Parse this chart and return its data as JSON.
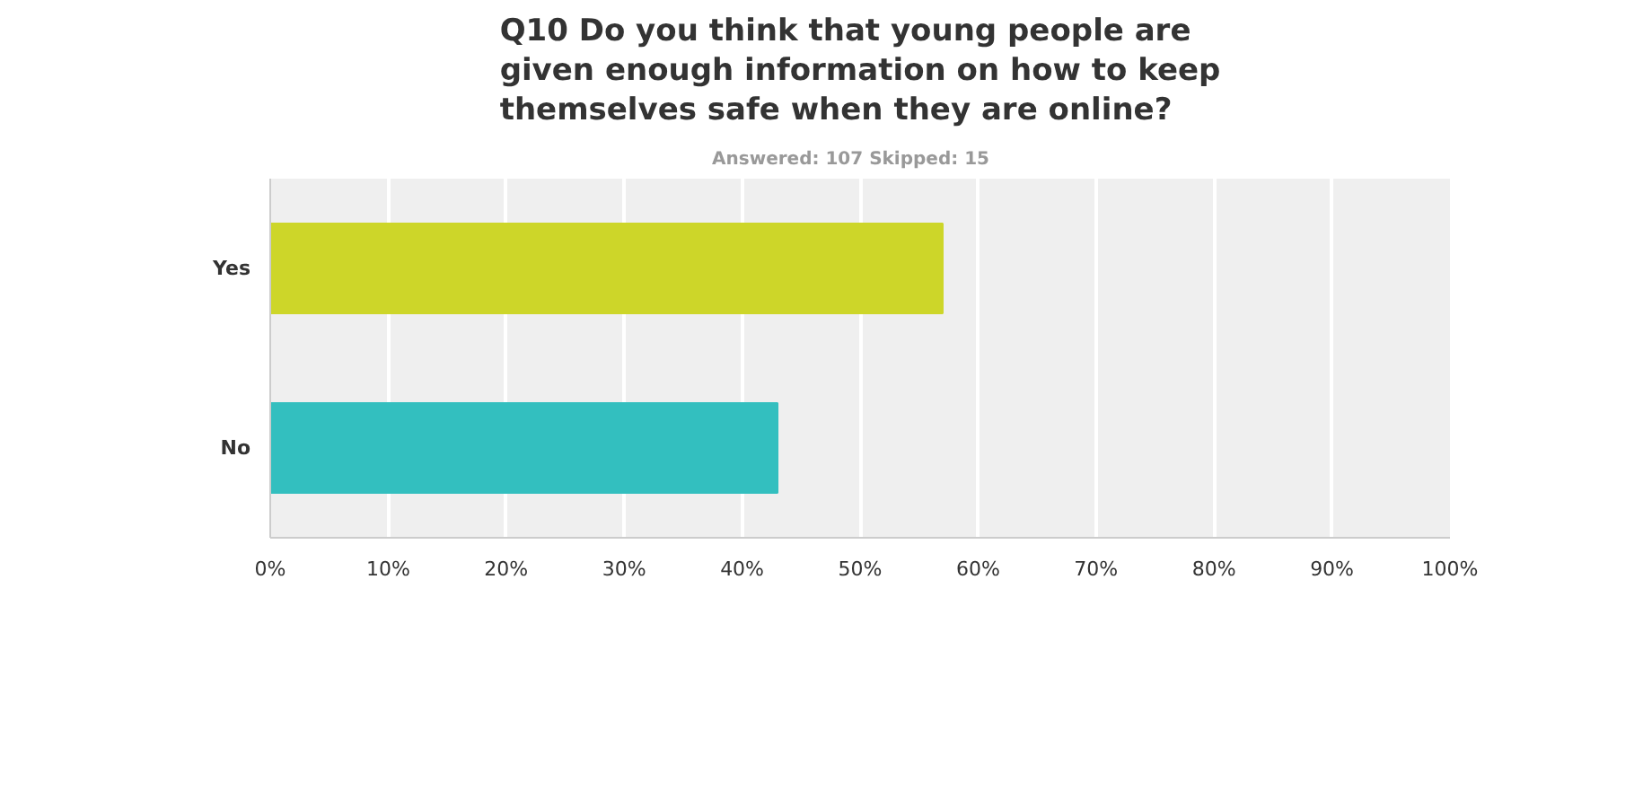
{
  "chart_data": {
    "type": "bar",
    "orientation": "horizontal",
    "title": "Q10 Do you think that young people are given enough information on how to keep themselves safe when they are online?",
    "subtitle": "Answered: 107    Skipped: 15",
    "categories": [
      "Yes",
      "No"
    ],
    "values": [
      57,
      43
    ],
    "colors": [
      "#cdd629",
      "#33bfbf"
    ],
    "xlim": [
      0,
      100
    ],
    "xticks": [
      {
        "value": 0,
        "label": "0%"
      },
      {
        "value": 10,
        "label": "10%"
      },
      {
        "value": 20,
        "label": "20%"
      },
      {
        "value": 30,
        "label": "30%"
      },
      {
        "value": 40,
        "label": "40%"
      },
      {
        "value": 50,
        "label": "50%"
      },
      {
        "value": 60,
        "label": "60%"
      },
      {
        "value": 70,
        "label": "70%"
      },
      {
        "value": 80,
        "label": "80%"
      },
      {
        "value": 90,
        "label": "90%"
      },
      {
        "value": 100,
        "label": "100%"
      }
    ],
    "grid": "x"
  }
}
